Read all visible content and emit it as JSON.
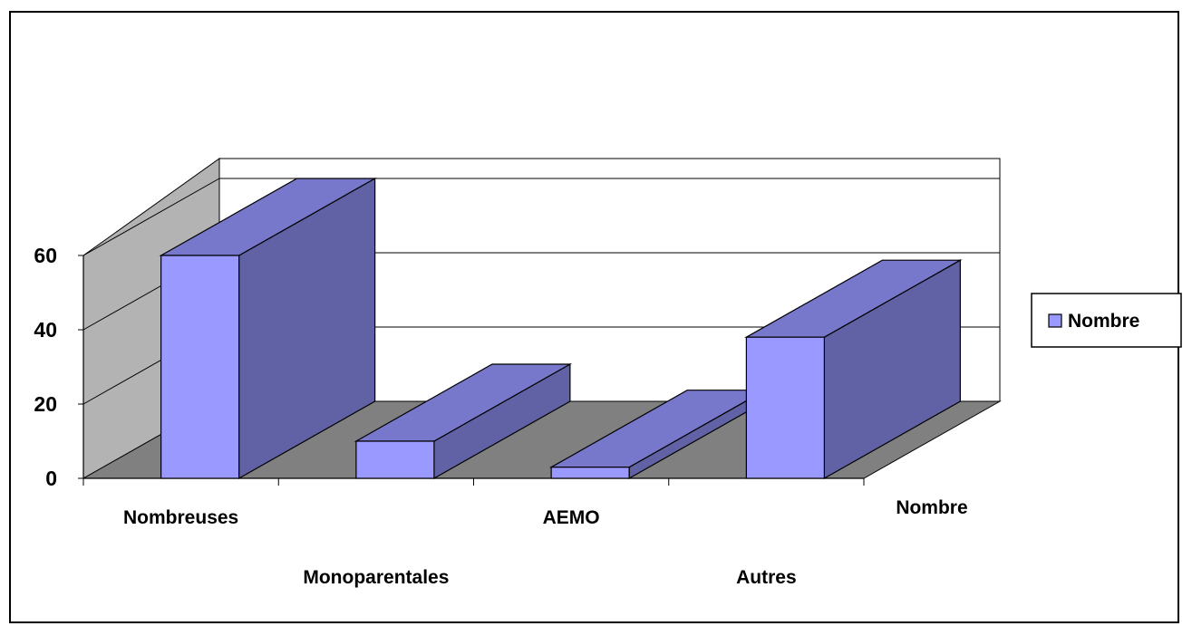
{
  "chart_data": {
    "type": "bar",
    "categories": [
      "Nombreuses",
      "Monoparentales",
      "AEMO",
      "Autres"
    ],
    "series": [
      {
        "name": "Nombre",
        "values": [
          60,
          10,
          3,
          38
        ]
      }
    ],
    "depth_label": "Nombre",
    "y_ticks": [
      0,
      20,
      40,
      60
    ],
    "ylim": [
      0,
      60
    ],
    "grid": true,
    "legend": "right",
    "colors": {
      "bar_front": "#9999FF",
      "bar_top": "#7777CC",
      "bar_side": "#6161A5",
      "floor": "#808080",
      "left_wall": "#B3B3B3",
      "gridline": "#000000"
    }
  }
}
